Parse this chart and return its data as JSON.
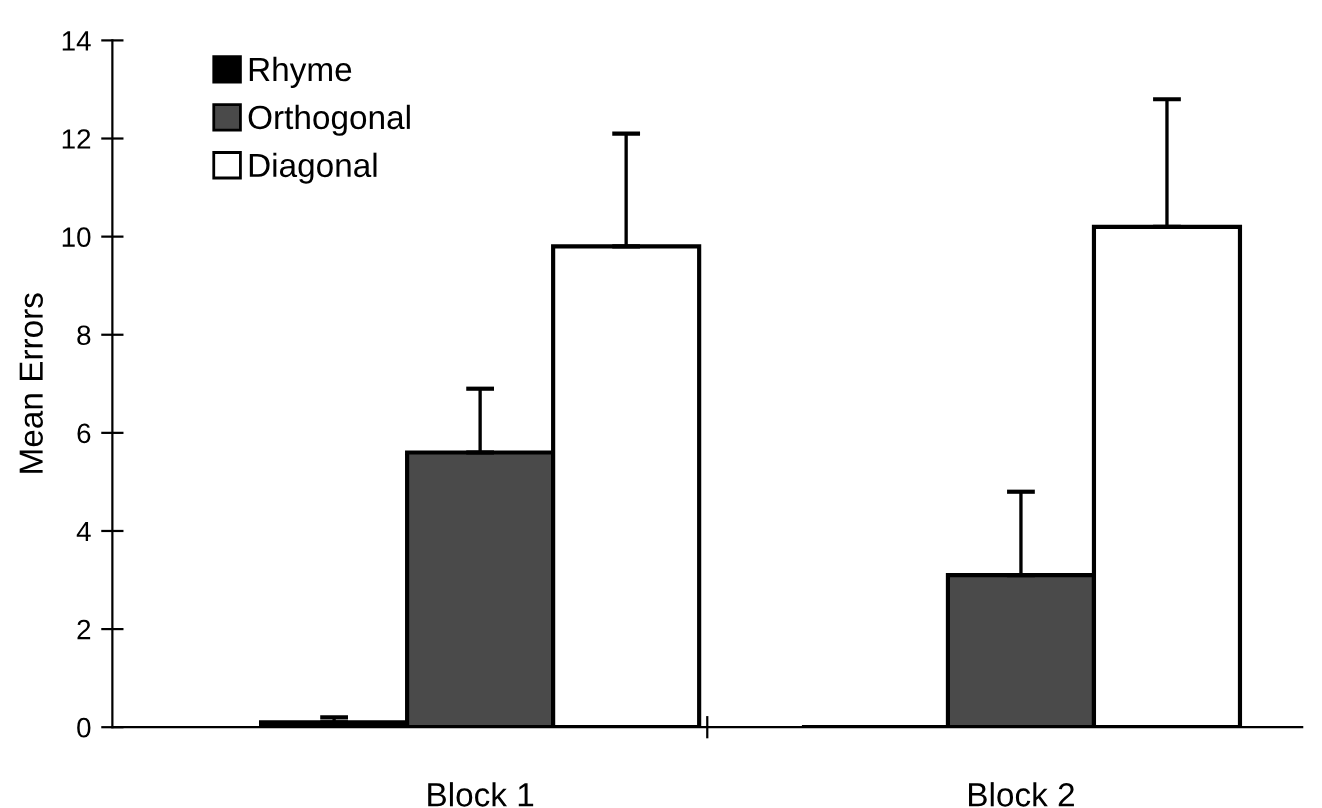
{
  "chart_data": {
    "type": "bar",
    "ylabel": "Mean Errors",
    "categories": [
      "Block 1",
      "Block 2"
    ],
    "series": [
      {
        "name": "Rhyme",
        "color": "#000000",
        "values": [
          0.1,
          0.0
        ],
        "errors": [
          [
            0.1,
            0.2
          ],
          null
        ]
      },
      {
        "name": "Orthogonal",
        "color": "#4a4a4a",
        "values": [
          5.6,
          3.1
        ],
        "errors": [
          [
            5.6,
            6.9
          ],
          [
            3.1,
            4.8
          ]
        ]
      },
      {
        "name": "Diagonal",
        "color": "#ffffff",
        "values": [
          9.8,
          10.2
        ],
        "errors": [
          [
            9.8,
            12.1
          ],
          [
            10.2,
            12.8
          ]
        ]
      }
    ],
    "ylim": [
      0,
      14
    ],
    "yticks": [
      0,
      2,
      4,
      6,
      8,
      10,
      12,
      14
    ],
    "grid": false,
    "legend": "top left"
  }
}
